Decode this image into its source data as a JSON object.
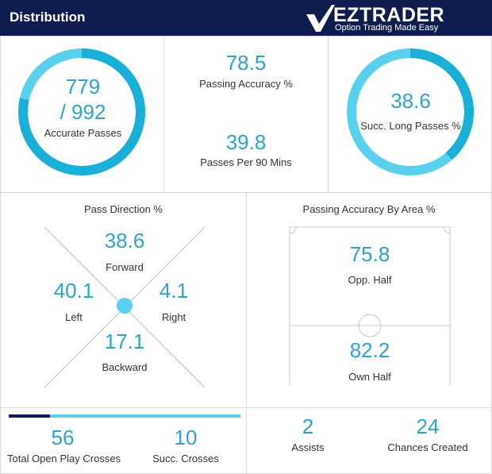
{
  "header": {
    "title": "Distribution",
    "logo_name": "EZTRADER",
    "logo_tagline": "Option Trading Made Easy"
  },
  "colors": {
    "header_bg": "#0e1d4e",
    "accent": "#2aa6cf",
    "ring_dark": "#19b0d8",
    "ring_light": "#5ad0ef",
    "bar_dark": "#0e1d4e"
  },
  "passes": {
    "accurate": "779",
    "total": "/ 992",
    "label": "Accurate Passes",
    "fraction": 0.785
  },
  "passing_accuracy": {
    "value": "78.5",
    "label": "Passing Accuracy %"
  },
  "passes_per_90": {
    "value": "39.8",
    "label": "Passes Per 90 Mins"
  },
  "long_passes": {
    "value": "38.6",
    "label": "Succ. Long Passes %",
    "fraction": 0.386
  },
  "pass_direction": {
    "title": "Pass Direction %",
    "forward": {
      "value": "38.6",
      "label": "Forward"
    },
    "left": {
      "value": "40.1",
      "label": "Left"
    },
    "right": {
      "value": "4.1",
      "label": "Right"
    },
    "backward": {
      "value": "17.1",
      "label": "Backward"
    }
  },
  "area_accuracy": {
    "title": "Passing Accuracy By Area %",
    "opp_half": {
      "value": "75.8",
      "label": "Opp. Half"
    },
    "own_half": {
      "value": "82.2",
      "label": "Own Half"
    }
  },
  "crosses": {
    "total": {
      "value": "56",
      "label": "Total Open Play Crosses"
    },
    "successful": {
      "value": "10",
      "label": "Succ. Crosses"
    },
    "success_fraction": 0.179
  },
  "assists": {
    "value": "2",
    "label": "Assists"
  },
  "chances": {
    "value": "24",
    "label": "Chances Created"
  }
}
